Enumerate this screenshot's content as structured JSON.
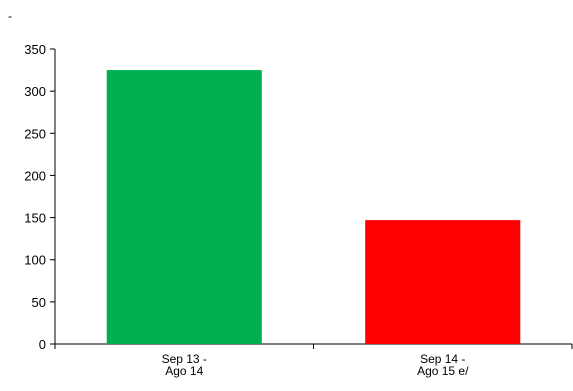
{
  "top_mark": "-",
  "chart_data": {
    "type": "bar",
    "categories": [
      [
        "Sep 13 -",
        "Ago 14"
      ],
      [
        "Sep 14 -",
        "Ago 15 e/"
      ]
    ],
    "values": [
      325,
      147
    ],
    "colors": [
      "#00b050",
      "#ff0000"
    ],
    "ylim": [
      0,
      350
    ],
    "yticks": [
      0,
      50,
      100,
      150,
      200,
      250,
      300,
      350
    ],
    "title": "",
    "xlabel": "",
    "ylabel": "",
    "grid": false,
    "legend": "none"
  }
}
